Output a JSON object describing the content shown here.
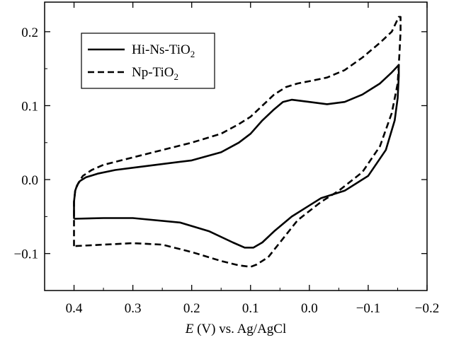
{
  "chart_data": {
    "type": "line",
    "title": "",
    "xlabel": {
      "italic": "E",
      "rest": " (V) vs. Ag/AgCl"
    },
    "ylabel": "",
    "xlim": [
      0.45,
      -0.2
    ],
    "ylim": [
      -0.15,
      0.24
    ],
    "x_ticks": [
      0.4,
      0.3,
      0.2,
      0.1,
      0.0,
      -0.1,
      -0.2
    ],
    "x_tick_labels": [
      "0.4",
      "0.3",
      "0.2",
      "0.1",
      "0.0",
      "−0.1",
      "−0.2"
    ],
    "y_ticks": [
      -0.1,
      0.0,
      0.1,
      0.2
    ],
    "y_tick_labels": [
      "−0.1",
      "0.0",
      "0.1",
      "0.2"
    ],
    "grid": false,
    "legend_placement": "top-left",
    "series": [
      {
        "name": "Hi-Ns-TiO2",
        "label_base": "Hi-Ns-TiO",
        "label_sub": "2",
        "style": "solid",
        "color": "#000000",
        "points": [
          [
            0.4,
            -0.053
          ],
          [
            0.4,
            -0.03
          ],
          [
            0.398,
            -0.015
          ],
          [
            0.395,
            -0.008
          ],
          [
            0.39,
            -0.002
          ],
          [
            0.38,
            0.003
          ],
          [
            0.36,
            0.008
          ],
          [
            0.33,
            0.013
          ],
          [
            0.3,
            0.016
          ],
          [
            0.25,
            0.021
          ],
          [
            0.2,
            0.026
          ],
          [
            0.15,
            0.037
          ],
          [
            0.12,
            0.05
          ],
          [
            0.1,
            0.062
          ],
          [
            0.08,
            0.08
          ],
          [
            0.06,
            0.095
          ],
          [
            0.045,
            0.105
          ],
          [
            0.03,
            0.108
          ],
          [
            0.0,
            0.105
          ],
          [
            -0.03,
            0.102
          ],
          [
            -0.06,
            0.105
          ],
          [
            -0.09,
            0.115
          ],
          [
            -0.12,
            0.13
          ],
          [
            -0.14,
            0.145
          ],
          [
            -0.152,
            0.155
          ],
          [
            -0.152,
            0.14
          ],
          [
            -0.15,
            0.11
          ],
          [
            -0.145,
            0.08
          ],
          [
            -0.13,
            0.04
          ],
          [
            -0.1,
            0.005
          ],
          [
            -0.06,
            -0.015
          ],
          [
            -0.02,
            -0.025
          ],
          [
            0.0,
            -0.035
          ],
          [
            0.03,
            -0.05
          ],
          [
            0.06,
            -0.07
          ],
          [
            0.08,
            -0.085
          ],
          [
            0.095,
            -0.092
          ],
          [
            0.11,
            -0.092
          ],
          [
            0.13,
            -0.085
          ],
          [
            0.17,
            -0.07
          ],
          [
            0.22,
            -0.058
          ],
          [
            0.3,
            -0.052
          ],
          [
            0.35,
            -0.052
          ],
          [
            0.4,
            -0.053
          ]
        ]
      },
      {
        "name": "Np-TiO2",
        "label_base": "Np-TiO",
        "label_sub": "2",
        "style": "dashed",
        "color": "#000000",
        "points": [
          [
            0.4,
            -0.09
          ],
          [
            0.4,
            -0.03
          ],
          [
            0.398,
            -0.015
          ],
          [
            0.393,
            -0.005
          ],
          [
            0.385,
            0.005
          ],
          [
            0.37,
            0.013
          ],
          [
            0.35,
            0.02
          ],
          [
            0.3,
            0.03
          ],
          [
            0.25,
            0.04
          ],
          [
            0.2,
            0.05
          ],
          [
            0.15,
            0.062
          ],
          [
            0.12,
            0.075
          ],
          [
            0.1,
            0.085
          ],
          [
            0.08,
            0.1
          ],
          [
            0.06,
            0.115
          ],
          [
            0.04,
            0.125
          ],
          [
            0.02,
            0.13
          ],
          [
            0.0,
            0.133
          ],
          [
            -0.03,
            0.138
          ],
          [
            -0.06,
            0.148
          ],
          [
            -0.09,
            0.165
          ],
          [
            -0.12,
            0.185
          ],
          [
            -0.14,
            0.2
          ],
          [
            -0.152,
            0.22
          ],
          [
            -0.155,
            0.22
          ],
          [
            -0.155,
            0.2
          ],
          [
            -0.153,
            0.17
          ],
          [
            -0.15,
            0.13
          ],
          [
            -0.14,
            0.09
          ],
          [
            -0.12,
            0.045
          ],
          [
            -0.09,
            0.01
          ],
          [
            -0.05,
            -0.015
          ],
          [
            -0.02,
            -0.03
          ],
          [
            0.02,
            -0.055
          ],
          [
            0.05,
            -0.085
          ],
          [
            0.07,
            -0.105
          ],
          [
            0.09,
            -0.115
          ],
          [
            0.1,
            -0.118
          ],
          [
            0.12,
            -0.116
          ],
          [
            0.15,
            -0.11
          ],
          [
            0.2,
            -0.098
          ],
          [
            0.25,
            -0.088
          ],
          [
            0.3,
            -0.086
          ],
          [
            0.35,
            -0.088
          ],
          [
            0.4,
            -0.09
          ]
        ]
      }
    ]
  }
}
